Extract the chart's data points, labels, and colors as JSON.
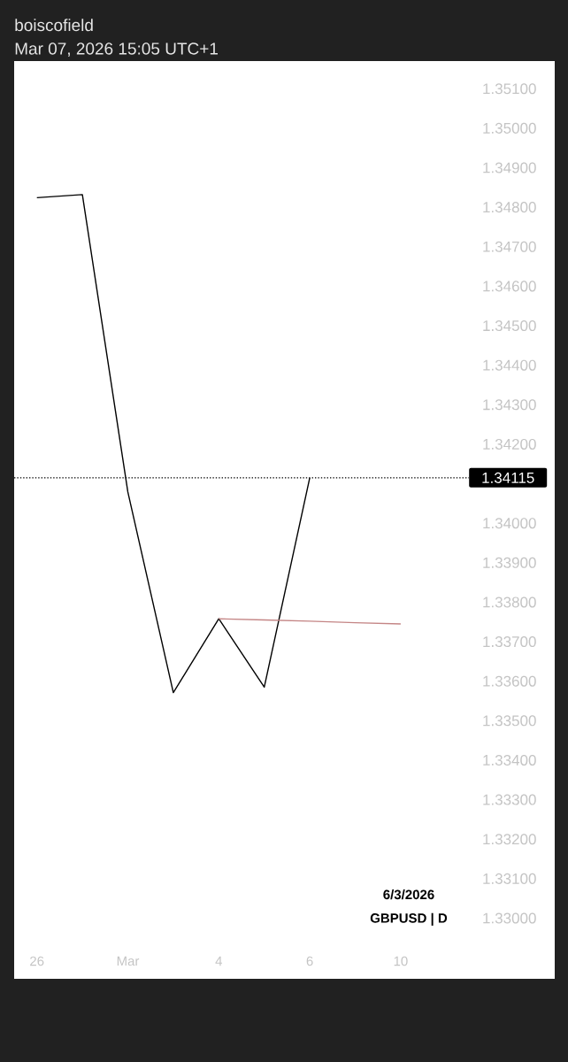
{
  "chart_data": {
    "type": "line",
    "title": "boiscofield",
    "subtitle": "Mar 07, 2026 15:05 UTC+1",
    "categories": [
      "26",
      null,
      "Mar",
      null,
      "4",
      null,
      "6",
      null,
      "10",
      null
    ],
    "series": [
      {
        "color": "#000000",
        "values": [
          1.34824,
          1.34832,
          1.34079,
          1.33571,
          1.33758,
          1.33585,
          1.34115,
          null,
          null,
          null
        ]
      },
      {
        "type": "line",
        "color": "#c48585",
        "values": [
          null,
          null,
          null,
          null,
          1.33758,
          1.33755,
          1.33752,
          1.33748,
          1.33745,
          null
        ]
      }
    ],
    "ylim": [
      1.33,
      1.3517
    ],
    "yticks": [
      {
        "value": 1.33,
        "label": "1.33000"
      },
      {
        "value": 1.331,
        "label": "1.33100"
      },
      {
        "value": 1.332,
        "label": "1.33200"
      },
      {
        "value": 1.333,
        "label": "1.33300"
      },
      {
        "value": 1.334,
        "label": "1.33400"
      },
      {
        "value": 1.335,
        "label": "1.33500"
      },
      {
        "value": 1.336,
        "label": "1.33600"
      },
      {
        "value": 1.337,
        "label": "1.33700"
      },
      {
        "value": 1.338,
        "label": "1.33800"
      },
      {
        "value": 1.339,
        "label": "1.33900"
      },
      {
        "value": 1.34,
        "label": "1.34000"
      },
      {
        "value": 1.342,
        "label": "1.34200"
      },
      {
        "value": 1.343,
        "label": "1.34300"
      },
      {
        "value": 1.344,
        "label": "1.34400"
      },
      {
        "value": 1.345,
        "label": "1.34500"
      },
      {
        "value": 1.346,
        "label": "1.34600"
      },
      {
        "value": 1.347,
        "label": "1.34700"
      },
      {
        "value": 1.348,
        "label": "1.34800"
      },
      {
        "value": 1.349,
        "label": "1.34900"
      },
      {
        "value": 1.35,
        "label": "1.35000"
      },
      {
        "value": 1.351,
        "label": "1.35100"
      }
    ],
    "ref_lines": [
      {
        "axis": "y",
        "value": 1.34115,
        "label": "1.34115",
        "color": "#000000",
        "line_style": "dotted"
      }
    ],
    "annotations": [
      "6/3/2026",
      "GBPUSD | D"
    ],
    "marker": "none",
    "line_style": "solid"
  }
}
